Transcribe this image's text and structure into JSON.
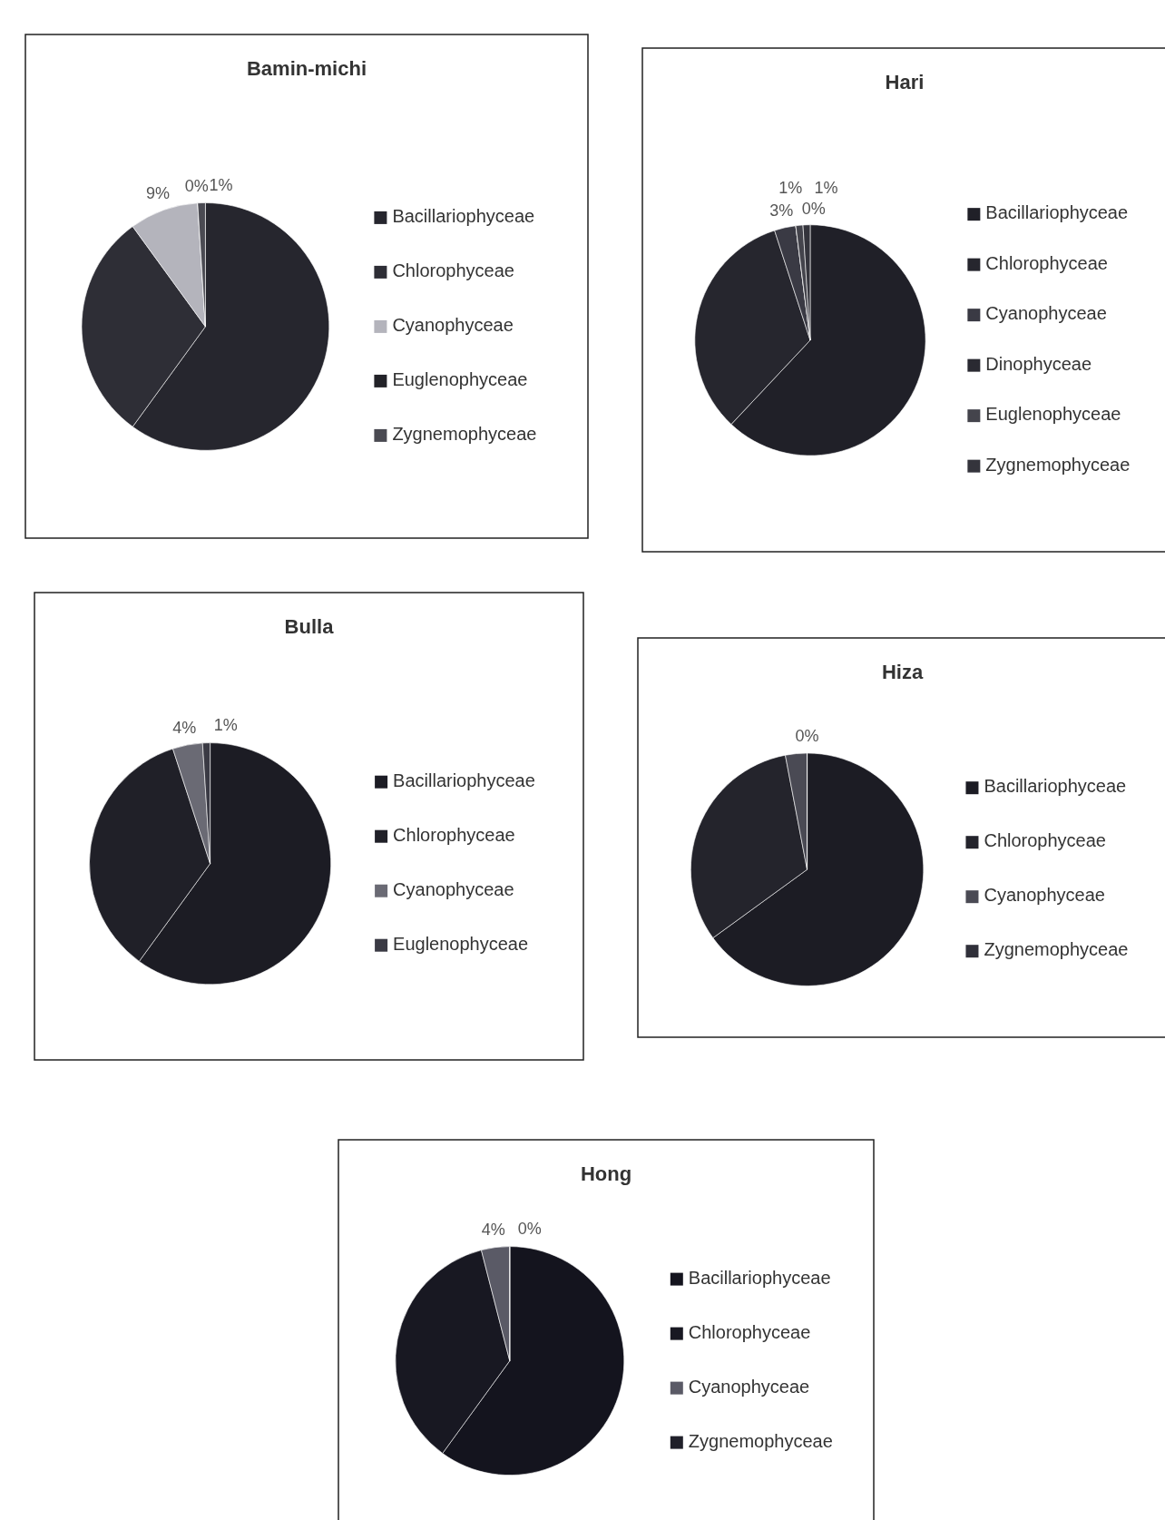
{
  "chart_data": [
    {
      "type": "pie",
      "title": "Bamin-michi",
      "categories": [
        "Bacillariophyceae",
        "Chlorophyceae",
        "Cyanophyceae",
        "Euglenophyceae",
        "Zygnemophyceae"
      ],
      "values": [
        60,
        30,
        9,
        0,
        1
      ],
      "colors": [
        "#26262e",
        "#2e2e36",
        "#b4b4bc",
        "#222228",
        "#4a4a52"
      ],
      "value_labels": [
        null,
        null,
        "9%",
        "0%",
        "1%"
      ],
      "legend": "right"
    },
    {
      "type": "pie",
      "title": "Hari",
      "categories": [
        "Bacillariophyceae",
        "Chlorophyceae",
        "Cyanophyceae",
        "Dinophyceae",
        "Euglenophyceae",
        "Zygnemophyceae"
      ],
      "values": [
        62,
        33,
        3,
        0,
        1,
        1
      ],
      "colors": [
        "#202028",
        "#26262e",
        "#3a3a44",
        "#2a2a32",
        "#44444c",
        "#34343c"
      ],
      "value_labels": [
        null,
        null,
        "3%",
        "0%",
        "1%",
        "1%"
      ],
      "legend": "right"
    },
    {
      "type": "pie",
      "title": "Bulla",
      "categories": [
        "Bacillariophyceae",
        "Chlorophyceae",
        "Cyanophyceae",
        "Euglenophyceae"
      ],
      "values": [
        60,
        35,
        4,
        1
      ],
      "colors": [
        "#1c1c24",
        "#202028",
        "#6a6a74",
        "#3a3a44"
      ],
      "value_labels": [
        null,
        null,
        "4%",
        "1%"
      ],
      "legend": "right"
    },
    {
      "type": "pie",
      "title": "Hiza",
      "categories": [
        "Bacillariophyceae",
        "Chlorophyceae",
        "Cyanophyceae",
        "Zygnemophyceae"
      ],
      "values": [
        65,
        32,
        3,
        0
      ],
      "colors": [
        "#1c1c24",
        "#24242c",
        "#4a4a54",
        "#30303a"
      ],
      "value_labels": [
        null,
        null,
        null,
        "0%"
      ],
      "legend": "right"
    },
    {
      "type": "pie",
      "title": "Hong",
      "categories": [
        "Bacillariophyceae",
        "Chlorophyceae",
        "Cyanophyceae",
        "Zygnemophyceae"
      ],
      "values": [
        60,
        36,
        4,
        0
      ],
      "colors": [
        "#14141e",
        "#181822",
        "#5a5a66",
        "#20202a"
      ],
      "value_labels": [
        null,
        null,
        "4%",
        "0%"
      ],
      "legend": "right"
    }
  ]
}
